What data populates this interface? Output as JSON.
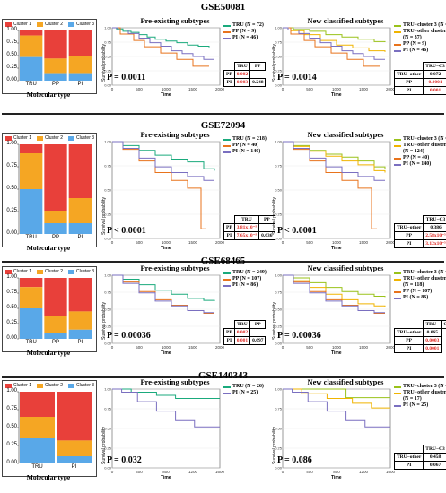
{
  "colors": {
    "cluster1": "#e8403a",
    "cluster2": "#f5a623",
    "cluster3": "#59a8e8",
    "tru": "#1aaa7c",
    "pp": "#e8731c",
    "pi": "#7a6fc0",
    "tru_c3": "#9ac21a",
    "tru_other": "#f0b400"
  },
  "common": {
    "cluster1": "Cluster 1",
    "cluster2": "Cluster 2",
    "cluster3": "Cluster 3",
    "molecular_type": "Molecular type",
    "pre_title": "Pre-existing subtypes",
    "new_title": "New classified subtypes",
    "surv_ylabel": "Survival probability",
    "surv_xlabel": "Time"
  },
  "datasets": [
    {
      "id": "GSE50081",
      "bar": {
        "categories": [
          "TRU",
          "PP",
          "PI"
        ],
        "yticks": [
          "1.00",
          "0.75",
          "0.50",
          "0.25",
          "0.00"
        ],
        "c1": [
          0.1,
          0.56,
          0.5
        ],
        "c2": [
          0.43,
          0.29,
          0.35
        ],
        "c3": [
          0.47,
          0.15,
          0.15
        ]
      },
      "pre": {
        "legend": [
          "TRU (N = 72)",
          "PP (N = 9)",
          "PI (N = 46)"
        ],
        "table": {
          "head": [
            "TRU",
            "PP"
          ],
          "rows": [
            [
              "PP",
              "0.002",
              ""
            ],
            [
              "PI",
              "0.003",
              "0.248"
            ]
          ]
        },
        "p": "P = 0.0011"
      },
      "new": {
        "legend": [
          "TRU−cluster 3 (N = 35)",
          "TRU−other cluster 3",
          "(N = 37)",
          "PP (N = 9)",
          "PI (N = 46)"
        ],
        "table": {
          "head": [
            "TRU−C3"
          ],
          "rows": [
            [
              "TRU−other",
              "0.072"
            ],
            [
              "PP",
              "0.0001"
            ],
            [
              "PI",
              "0.001"
            ]
          ]
        },
        "p": "P = 0.0014"
      },
      "xticks": [
        "0",
        "500",
        "1000",
        "1500",
        "2000"
      ]
    },
    {
      "id": "GSE72094",
      "bar": {
        "categories": [
          "TRU",
          "PP",
          "PI"
        ],
        "yticks": [
          "1.00",
          "0.75",
          "0.50",
          "0.25",
          "0.00"
        ],
        "c1": [
          0.1,
          0.74,
          0.6
        ],
        "c2": [
          0.4,
          0.14,
          0.28
        ],
        "c3": [
          0.5,
          0.12,
          0.12
        ]
      },
      "pre": {
        "legend": [
          "TRU (N = 218)",
          "PP (N = 40)",
          "PI (N = 140)"
        ],
        "table": {
          "head": [
            "TRU",
            "PP"
          ],
          "rows": [
            [
              "PP",
              "3.81x10⁻⁵",
              ""
            ],
            [
              "PI",
              "7.65x10⁻⁵",
              "0.636"
            ]
          ]
        },
        "p": "P < 0.0001"
      },
      "new": {
        "legend": [
          "TRU−cluster 3 (N = 94)",
          "TRU−other cluster 3",
          "(N = 124)",
          "PP (N = 40)",
          "PI (N = 140)"
        ],
        "table": {
          "head": [
            "TRU−C3"
          ],
          "rows": [
            [
              "TRU−other",
              "0.386"
            ],
            [
              "PP",
              "2.58x10⁻⁵"
            ],
            [
              "PI",
              "3.12x10⁻⁵"
            ]
          ]
        },
        "p": "P < 0.0001"
      },
      "xticks": [
        "0",
        "500",
        "1000",
        "1500",
        "2000"
      ]
    },
    {
      "id": "GSE68465",
      "bar": {
        "categories": [
          "TRU",
          "PP",
          "PI"
        ],
        "yticks": [
          "1.00",
          "0.75",
          "0.50",
          "0.25",
          "0.00"
        ],
        "c1": [
          0.15,
          0.62,
          0.55
        ],
        "c2": [
          0.35,
          0.28,
          0.3
        ],
        "c3": [
          0.5,
          0.1,
          0.15
        ]
      },
      "pre": {
        "legend": [
          "TRU (N = 249)",
          "PP (N = 107)",
          "PI (N = 86)"
        ],
        "table": {
          "head": [
            "TRU",
            "PP"
          ],
          "rows": [
            [
              "PP",
              "0.002",
              ""
            ],
            [
              "PI",
              "0.001",
              "0.697"
            ]
          ]
        },
        "p": "P = 0.00036"
      },
      "new": {
        "legend": [
          "TRU−cluster 3 (N = 131)",
          "TRU−other cluster 3",
          "(N = 118)",
          "PP (N = 107)",
          "PI (N = 86)"
        ],
        "table": {
          "head": [
            "TRU−",
            "C3"
          ],
          "rows": [
            [
              "TRU−other",
              "0.065"
            ],
            [
              "PP",
              "0.0003"
            ],
            [
              "PI",
              "0.0001"
            ]
          ]
        },
        "p": "P = 0.00036"
      },
      "xticks": [
        "0",
        "500",
        "1000",
        "1500",
        "2000"
      ]
    },
    {
      "id": "GSE140343",
      "bar": {
        "categories": [
          "TRU",
          "PI"
        ],
        "yticks": [
          "1.00",
          "0.75",
          "0.50",
          "0.25",
          "0.00"
        ],
        "c1": [
          0.35,
          0.68
        ],
        "c2": [
          0.3,
          0.22
        ],
        "c3": [
          0.35,
          0.1
        ]
      },
      "pre": {
        "legend": [
          "TRU (N = 26)",
          "PI (N = 25)"
        ],
        "table": null,
        "p": "P = 0.032"
      },
      "new": {
        "legend": [
          "TRU−cluster 3 (N = 9)",
          "TRU−other cluster 3",
          "(N = 17)",
          "PI (N = 25)"
        ],
        "table": {
          "head": [
            "TRU−C3"
          ],
          "rows": [
            [
              "TRU−other",
              "0.458"
            ],
            [
              "PI",
              "0.067"
            ]
          ]
        },
        "p": "P = 0.086"
      },
      "xticks": [
        "0",
        "400",
        "800",
        "1200",
        "1600"
      ]
    }
  ],
  "chart_data": [
    {
      "type": "bar",
      "title": "GSE50081",
      "xlabel": "Molecular type",
      "categories": [
        "TRU",
        "PP",
        "PI"
      ],
      "series": [
        {
          "name": "Cluster 1",
          "values": [
            0.1,
            0.56,
            0.5
          ]
        },
        {
          "name": "Cluster 2",
          "values": [
            0.43,
            0.29,
            0.35
          ]
        },
        {
          "name": "Cluster 3",
          "values": [
            0.47,
            0.15,
            0.15
          ]
        }
      ],
      "ylim": [
        0,
        1
      ]
    },
    {
      "type": "line",
      "title": "Pre-existing subtypes",
      "xlabel": "Time",
      "ylabel": "Survival probability",
      "series": [
        {
          "name": "TRU (N = 72)",
          "x": [
            0,
            500,
            1000,
            1500,
            2000
          ],
          "y": [
            1.0,
            0.86,
            0.76,
            0.7,
            0.66
          ]
        },
        {
          "name": "PP (N = 9)",
          "x": [
            0,
            500,
            1000,
            1500,
            2000
          ],
          "y": [
            1.0,
            0.6,
            0.45,
            0.35,
            0.3
          ]
        },
        {
          "name": "PI (N = 46)",
          "x": [
            0,
            500,
            1000,
            1500,
            2000
          ],
          "y": [
            1.0,
            0.8,
            0.65,
            0.55,
            0.45
          ]
        }
      ],
      "ylim": [
        0,
        1
      ]
    },
    {
      "type": "line",
      "title": "New classified subtypes",
      "xlabel": "Time",
      "ylabel": "Survival probability",
      "series": [
        {
          "name": "TRU−cluster 3 (N = 35)",
          "x": [
            0,
            500,
            1000,
            1500,
            2000
          ],
          "y": [
            1.0,
            0.92,
            0.85,
            0.78,
            0.75
          ]
        },
        {
          "name": "TRU−other cluster 3 (N = 37)",
          "x": [
            0,
            500,
            1000,
            1500,
            2000
          ],
          "y": [
            1.0,
            0.82,
            0.7,
            0.63,
            0.58
          ]
        },
        {
          "name": "PP (N = 9)",
          "x": [
            0,
            500,
            1000,
            1500,
            2000
          ],
          "y": [
            1.0,
            0.6,
            0.45,
            0.35,
            0.3
          ]
        },
        {
          "name": "PI (N = 46)",
          "x": [
            0,
            500,
            1000,
            1500,
            2000
          ],
          "y": [
            1.0,
            0.8,
            0.65,
            0.55,
            0.45
          ]
        }
      ],
      "ylim": [
        0,
        1
      ]
    },
    {
      "type": "bar",
      "title": "GSE72094",
      "xlabel": "Molecular type",
      "categories": [
        "TRU",
        "PP",
        "PI"
      ],
      "series": [
        {
          "name": "Cluster 1",
          "values": [
            0.1,
            0.74,
            0.6
          ]
        },
        {
          "name": "Cluster 2",
          "values": [
            0.4,
            0.14,
            0.28
          ]
        },
        {
          "name": "Cluster 3",
          "values": [
            0.5,
            0.12,
            0.12
          ]
        }
      ],
      "ylim": [
        0,
        1
      ]
    },
    {
      "type": "line",
      "title": "Pre-existing subtypes",
      "xlabel": "Time",
      "ylabel": "Survival probability",
      "series": [
        {
          "name": "TRU (N = 218)",
          "x": [
            0,
            500,
            1000,
            1500,
            2000
          ],
          "y": [
            1.0,
            0.9,
            0.82,
            0.78,
            0.7
          ]
        },
        {
          "name": "PP (N = 40)",
          "x": [
            0,
            500,
            1000,
            1500,
            2000
          ],
          "y": [
            1.0,
            0.8,
            0.6,
            0.5,
            0.1
          ]
        },
        {
          "name": "PI (N = 140)",
          "x": [
            0,
            500,
            1000,
            1500,
            2000
          ],
          "y": [
            1.0,
            0.82,
            0.68,
            0.62,
            0.6
          ]
        }
      ],
      "ylim": [
        0,
        1
      ]
    },
    {
      "type": "line",
      "title": "New classified subtypes",
      "xlabel": "Time",
      "ylabel": "Survival probability",
      "series": [
        {
          "name": "TRU−cluster 3 (N = 94)",
          "x": [
            0,
            500,
            1000,
            1500,
            2000
          ],
          "y": [
            1.0,
            0.9,
            0.84,
            0.8,
            0.72
          ]
        },
        {
          "name": "TRU−other cluster 3 (N = 124)",
          "x": [
            0,
            500,
            1000,
            1500,
            2000
          ],
          "y": [
            1.0,
            0.89,
            0.8,
            0.76,
            0.68
          ]
        },
        {
          "name": "PP (N = 40)",
          "x": [
            0,
            500,
            1000,
            1500,
            2000
          ],
          "y": [
            1.0,
            0.8,
            0.6,
            0.5,
            0.1
          ]
        },
        {
          "name": "PI (N = 140)",
          "x": [
            0,
            500,
            1000,
            1500,
            2000
          ],
          "y": [
            1.0,
            0.82,
            0.68,
            0.62,
            0.6
          ]
        }
      ],
      "ylim": [
        0,
        1
      ]
    },
    {
      "type": "bar",
      "title": "GSE68465",
      "xlabel": "Molecular type",
      "categories": [
        "TRU",
        "PP",
        "PI"
      ],
      "series": [
        {
          "name": "Cluster 1",
          "values": [
            0.15,
            0.62,
            0.55
          ]
        },
        {
          "name": "Cluster 2",
          "values": [
            0.35,
            0.28,
            0.3
          ]
        },
        {
          "name": "Cluster 3",
          "values": [
            0.5,
            0.1,
            0.15
          ]
        }
      ],
      "ylim": [
        0,
        1
      ]
    },
    {
      "type": "line",
      "title": "Pre-existing subtypes",
      "xlabel": "Time",
      "ylabel": "Survival probability",
      "series": [
        {
          "name": "TRU (N = 249)",
          "x": [
            0,
            500,
            1000,
            1500,
            2000
          ],
          "y": [
            1.0,
            0.85,
            0.72,
            0.66,
            0.62
          ]
        },
        {
          "name": "PP (N = 107)",
          "x": [
            0,
            500,
            1000,
            1500,
            2000
          ],
          "y": [
            1.0,
            0.75,
            0.58,
            0.48,
            0.44
          ]
        },
        {
          "name": "PI (N = 86)",
          "x": [
            0,
            500,
            1000,
            1500,
            2000
          ],
          "y": [
            1.0,
            0.74,
            0.56,
            0.48,
            0.45
          ]
        }
      ],
      "ylim": [
        0,
        1
      ]
    },
    {
      "type": "line",
      "title": "New classified subtypes",
      "xlabel": "Time",
      "ylabel": "Survival probability",
      "series": [
        {
          "name": "TRU−cluster 3 (N = 131)",
          "x": [
            0,
            500,
            1000,
            1500,
            2000
          ],
          "y": [
            1.0,
            0.88,
            0.78,
            0.72,
            0.68
          ]
        },
        {
          "name": "TRU−other cluster 3 (N = 118)",
          "x": [
            0,
            500,
            1000,
            1500,
            2000
          ],
          "y": [
            1.0,
            0.82,
            0.66,
            0.58,
            0.54
          ]
        },
        {
          "name": "PP (N = 107)",
          "x": [
            0,
            500,
            1000,
            1500,
            2000
          ],
          "y": [
            1.0,
            0.75,
            0.58,
            0.48,
            0.44
          ]
        },
        {
          "name": "PI (N = 86)",
          "x": [
            0,
            500,
            1000,
            1500,
            2000
          ],
          "y": [
            1.0,
            0.74,
            0.56,
            0.48,
            0.45
          ]
        }
      ],
      "ylim": [
        0,
        1
      ]
    },
    {
      "type": "bar",
      "title": "GSE140343",
      "xlabel": "Molecular type",
      "categories": [
        "TRU",
        "PI"
      ],
      "series": [
        {
          "name": "Cluster 1",
          "values": [
            0.35,
            0.68
          ]
        },
        {
          "name": "Cluster 2",
          "values": [
            0.3,
            0.22
          ]
        },
        {
          "name": "Cluster 3",
          "values": [
            0.35,
            0.1
          ]
        }
      ],
      "ylim": [
        0,
        1
      ]
    },
    {
      "type": "line",
      "title": "Pre-existing subtypes",
      "xlabel": "Time",
      "ylabel": "Survival probability",
      "series": [
        {
          "name": "TRU (N = 26)",
          "x": [
            0,
            400,
            800,
            1200,
            1600
          ],
          "y": [
            1.0,
            0.96,
            0.92,
            0.88,
            0.88
          ]
        },
        {
          "name": "PI (N = 25)",
          "x": [
            0,
            400,
            800,
            1200,
            1600
          ],
          "y": [
            1.0,
            0.8,
            0.68,
            0.56,
            0.52
          ]
        }
      ],
      "ylim": [
        0,
        1
      ]
    },
    {
      "type": "line",
      "title": "New classified subtypes",
      "xlabel": "Time",
      "ylabel": "Survival probability",
      "series": [
        {
          "name": "TRU−cluster 3 (N = 9)",
          "x": [
            0,
            400,
            800,
            1200,
            1600
          ],
          "y": [
            1.0,
            1.0,
            0.89,
            0.89,
            0.89
          ]
        },
        {
          "name": "TRU−other cluster 3 (N = 17)",
          "x": [
            0,
            400,
            800,
            1200,
            1600
          ],
          "y": [
            1.0,
            0.94,
            0.88,
            0.82,
            0.76
          ]
        },
        {
          "name": "PI (N = 25)",
          "x": [
            0,
            400,
            800,
            1200,
            1600
          ],
          "y": [
            1.0,
            0.8,
            0.68,
            0.56,
            0.52
          ]
        }
      ],
      "ylim": [
        0,
        1
      ]
    }
  ]
}
